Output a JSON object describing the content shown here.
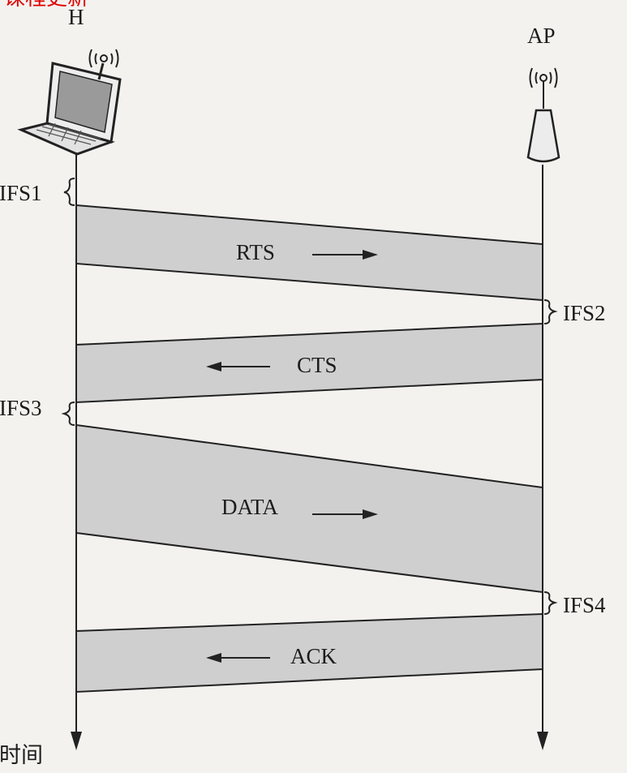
{
  "watermark": "课程更新",
  "stations": {
    "host_label": "H",
    "ap_label": "AP"
  },
  "ifs": {
    "ifs1": "IFS1",
    "ifs2": "IFS2",
    "ifs3": "IFS3",
    "ifs4": "IFS4"
  },
  "frames": {
    "rts": "RTS",
    "cts": "CTS",
    "data": "DATA",
    "ack": "ACK"
  },
  "axis": {
    "time_label": "时间"
  },
  "colors": {
    "frame_fill": "#cfcfcf",
    "line": "#222222",
    "watermark": "#e00000",
    "background": "#f3f2ef"
  }
}
